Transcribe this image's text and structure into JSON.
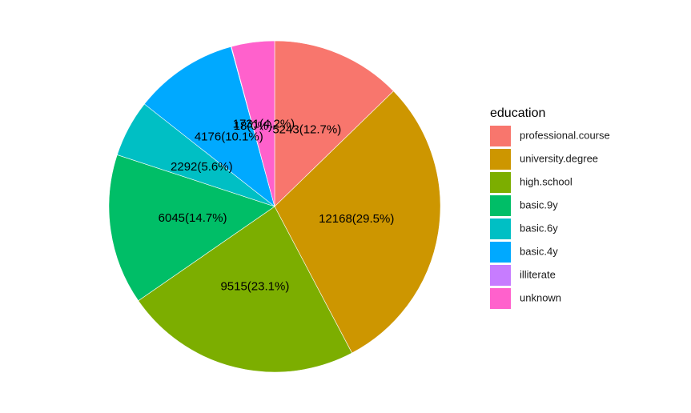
{
  "chart_data": {
    "type": "pie",
    "legend_title": "education",
    "legend_position": "right",
    "categories": [
      "professional.course",
      "university.degree",
      "high.school",
      "basic.9y",
      "basic.6y",
      "basic.4y",
      "illiterate",
      "unknown"
    ],
    "values": [
      5243,
      12168,
      9515,
      6045,
      2292,
      4176,
      18,
      1731
    ],
    "labels": [
      "5243(12.7%)",
      "12168(29.5%)",
      "9515(23.1%)",
      "6045(14.7%)",
      "2292(5.6%)",
      "4176(10.1%)",
      "18(0%)",
      "1731(4.2%)"
    ],
    "colors": [
      "#F8766D",
      "#CD9600",
      "#7CAE00",
      "#00BE67",
      "#00BFC4",
      "#00A9FF",
      "#C77CFF",
      "#FF61CC"
    ]
  }
}
